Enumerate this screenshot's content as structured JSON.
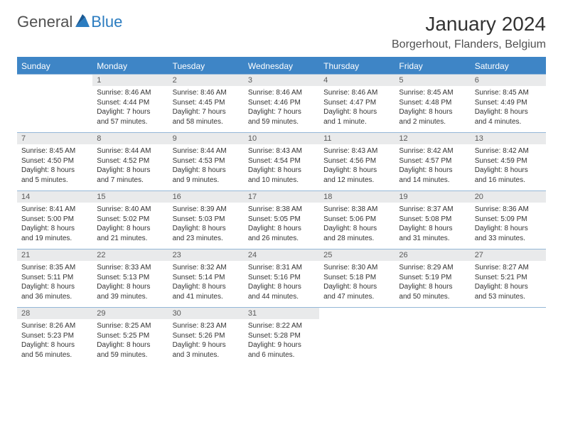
{
  "brand": {
    "part1": "General",
    "part2": "Blue"
  },
  "title": "January 2024",
  "location": "Borgerhout, Flanders, Belgium",
  "headerColor": "#3e85c6",
  "dayHeaders": [
    "Sunday",
    "Monday",
    "Tuesday",
    "Wednesday",
    "Thursday",
    "Friday",
    "Saturday"
  ],
  "weeks": [
    [
      {
        "n": "",
        "sunrise": "",
        "sunset": "",
        "daylight": ""
      },
      {
        "n": "1",
        "sunrise": "Sunrise: 8:46 AM",
        "sunset": "Sunset: 4:44 PM",
        "daylight": "Daylight: 7 hours and 57 minutes."
      },
      {
        "n": "2",
        "sunrise": "Sunrise: 8:46 AM",
        "sunset": "Sunset: 4:45 PM",
        "daylight": "Daylight: 7 hours and 58 minutes."
      },
      {
        "n": "3",
        "sunrise": "Sunrise: 8:46 AM",
        "sunset": "Sunset: 4:46 PM",
        "daylight": "Daylight: 7 hours and 59 minutes."
      },
      {
        "n": "4",
        "sunrise": "Sunrise: 8:46 AM",
        "sunset": "Sunset: 4:47 PM",
        "daylight": "Daylight: 8 hours and 1 minute."
      },
      {
        "n": "5",
        "sunrise": "Sunrise: 8:45 AM",
        "sunset": "Sunset: 4:48 PM",
        "daylight": "Daylight: 8 hours and 2 minutes."
      },
      {
        "n": "6",
        "sunrise": "Sunrise: 8:45 AM",
        "sunset": "Sunset: 4:49 PM",
        "daylight": "Daylight: 8 hours and 4 minutes."
      }
    ],
    [
      {
        "n": "7",
        "sunrise": "Sunrise: 8:45 AM",
        "sunset": "Sunset: 4:50 PM",
        "daylight": "Daylight: 8 hours and 5 minutes."
      },
      {
        "n": "8",
        "sunrise": "Sunrise: 8:44 AM",
        "sunset": "Sunset: 4:52 PM",
        "daylight": "Daylight: 8 hours and 7 minutes."
      },
      {
        "n": "9",
        "sunrise": "Sunrise: 8:44 AM",
        "sunset": "Sunset: 4:53 PM",
        "daylight": "Daylight: 8 hours and 9 minutes."
      },
      {
        "n": "10",
        "sunrise": "Sunrise: 8:43 AM",
        "sunset": "Sunset: 4:54 PM",
        "daylight": "Daylight: 8 hours and 10 minutes."
      },
      {
        "n": "11",
        "sunrise": "Sunrise: 8:43 AM",
        "sunset": "Sunset: 4:56 PM",
        "daylight": "Daylight: 8 hours and 12 minutes."
      },
      {
        "n": "12",
        "sunrise": "Sunrise: 8:42 AM",
        "sunset": "Sunset: 4:57 PM",
        "daylight": "Daylight: 8 hours and 14 minutes."
      },
      {
        "n": "13",
        "sunrise": "Sunrise: 8:42 AM",
        "sunset": "Sunset: 4:59 PM",
        "daylight": "Daylight: 8 hours and 16 minutes."
      }
    ],
    [
      {
        "n": "14",
        "sunrise": "Sunrise: 8:41 AM",
        "sunset": "Sunset: 5:00 PM",
        "daylight": "Daylight: 8 hours and 19 minutes."
      },
      {
        "n": "15",
        "sunrise": "Sunrise: 8:40 AM",
        "sunset": "Sunset: 5:02 PM",
        "daylight": "Daylight: 8 hours and 21 minutes."
      },
      {
        "n": "16",
        "sunrise": "Sunrise: 8:39 AM",
        "sunset": "Sunset: 5:03 PM",
        "daylight": "Daylight: 8 hours and 23 minutes."
      },
      {
        "n": "17",
        "sunrise": "Sunrise: 8:38 AM",
        "sunset": "Sunset: 5:05 PM",
        "daylight": "Daylight: 8 hours and 26 minutes."
      },
      {
        "n": "18",
        "sunrise": "Sunrise: 8:38 AM",
        "sunset": "Sunset: 5:06 PM",
        "daylight": "Daylight: 8 hours and 28 minutes."
      },
      {
        "n": "19",
        "sunrise": "Sunrise: 8:37 AM",
        "sunset": "Sunset: 5:08 PM",
        "daylight": "Daylight: 8 hours and 31 minutes."
      },
      {
        "n": "20",
        "sunrise": "Sunrise: 8:36 AM",
        "sunset": "Sunset: 5:09 PM",
        "daylight": "Daylight: 8 hours and 33 minutes."
      }
    ],
    [
      {
        "n": "21",
        "sunrise": "Sunrise: 8:35 AM",
        "sunset": "Sunset: 5:11 PM",
        "daylight": "Daylight: 8 hours and 36 minutes."
      },
      {
        "n": "22",
        "sunrise": "Sunrise: 8:33 AM",
        "sunset": "Sunset: 5:13 PM",
        "daylight": "Daylight: 8 hours and 39 minutes."
      },
      {
        "n": "23",
        "sunrise": "Sunrise: 8:32 AM",
        "sunset": "Sunset: 5:14 PM",
        "daylight": "Daylight: 8 hours and 41 minutes."
      },
      {
        "n": "24",
        "sunrise": "Sunrise: 8:31 AM",
        "sunset": "Sunset: 5:16 PM",
        "daylight": "Daylight: 8 hours and 44 minutes."
      },
      {
        "n": "25",
        "sunrise": "Sunrise: 8:30 AM",
        "sunset": "Sunset: 5:18 PM",
        "daylight": "Daylight: 8 hours and 47 minutes."
      },
      {
        "n": "26",
        "sunrise": "Sunrise: 8:29 AM",
        "sunset": "Sunset: 5:19 PM",
        "daylight": "Daylight: 8 hours and 50 minutes."
      },
      {
        "n": "27",
        "sunrise": "Sunrise: 8:27 AM",
        "sunset": "Sunset: 5:21 PM",
        "daylight": "Daylight: 8 hours and 53 minutes."
      }
    ],
    [
      {
        "n": "28",
        "sunrise": "Sunrise: 8:26 AM",
        "sunset": "Sunset: 5:23 PM",
        "daylight": "Daylight: 8 hours and 56 minutes."
      },
      {
        "n": "29",
        "sunrise": "Sunrise: 8:25 AM",
        "sunset": "Sunset: 5:25 PM",
        "daylight": "Daylight: 8 hours and 59 minutes."
      },
      {
        "n": "30",
        "sunrise": "Sunrise: 8:23 AM",
        "sunset": "Sunset: 5:26 PM",
        "daylight": "Daylight: 9 hours and 3 minutes."
      },
      {
        "n": "31",
        "sunrise": "Sunrise: 8:22 AM",
        "sunset": "Sunset: 5:28 PM",
        "daylight": "Daylight: 9 hours and 6 minutes."
      },
      {
        "n": "",
        "sunrise": "",
        "sunset": "",
        "daylight": ""
      },
      {
        "n": "",
        "sunrise": "",
        "sunset": "",
        "daylight": ""
      },
      {
        "n": "",
        "sunrise": "",
        "sunset": "",
        "daylight": ""
      }
    ]
  ]
}
